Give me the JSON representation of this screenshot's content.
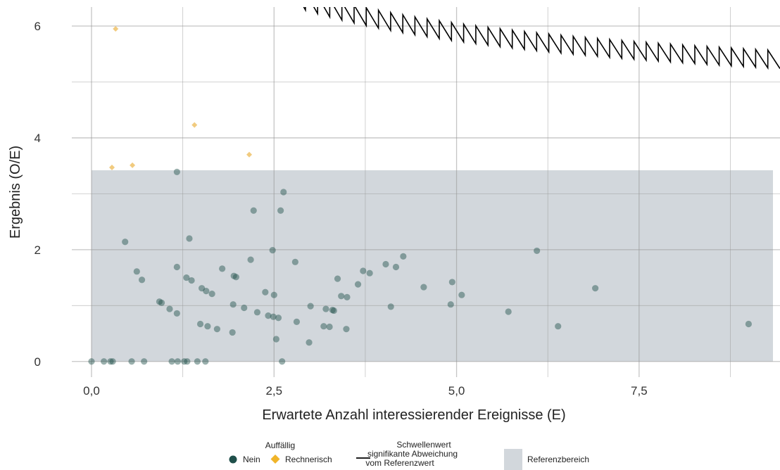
{
  "chart_data": {
    "type": "scatter",
    "xlabel": "Erwartete Anzahl interessierender Ereignisse (E)",
    "ylabel": "Ergebnis (O/E)",
    "xlim": [
      -0.27,
      9.43
    ],
    "ylim": [
      -0.28,
      6.34
    ],
    "x_ticks": [
      0,
      2.5,
      5,
      7.5
    ],
    "x_tick_labels": [
      "0,0",
      "2,5",
      "5,0",
      "7,5"
    ],
    "y_ticks": [
      0,
      2,
      4,
      6
    ],
    "y_tick_labels": [
      "0",
      "2",
      "4",
      "6"
    ],
    "grid": true,
    "reference_band": {
      "name": "Referenzbereich",
      "x": [
        0,
        9.43
      ],
      "y": [
        0,
        3.42
      ],
      "color": "#d2d7dc"
    },
    "series": [
      {
        "name": "Nein",
        "marker": "circle",
        "color": "#1f4f4a",
        "points": [
          [
            0,
            0
          ],
          [
            0.17,
            0
          ],
          [
            0.26,
            0
          ],
          [
            0.29,
            0
          ],
          [
            0.55,
            0
          ],
          [
            0.72,
            0
          ],
          [
            1.1,
            0
          ],
          [
            1.18,
            0
          ],
          [
            1.27,
            0
          ],
          [
            1.31,
            0
          ],
          [
            1.45,
            0
          ],
          [
            1.56,
            0
          ],
          [
            2.61,
            0
          ],
          [
            0.46,
            2.14
          ],
          [
            0.62,
            1.61
          ],
          [
            0.69,
            1.46
          ],
          [
            0.93,
            1.07
          ],
          [
            0.96,
            1.05
          ],
          [
            1.07,
            0.94
          ],
          [
            1.17,
            0.86
          ],
          [
            1.17,
            1.69
          ],
          [
            1.17,
            3.39
          ],
          [
            1.3,
            1.5
          ],
          [
            1.34,
            2.2
          ],
          [
            1.37,
            1.45
          ],
          [
            1.51,
            1.31
          ],
          [
            1.57,
            1.26
          ],
          [
            1.65,
            1.21
          ],
          [
            1.72,
            0.58
          ],
          [
            1.79,
            1.66
          ],
          [
            1.49,
            0.67
          ],
          [
            1.59,
            0.63
          ],
          [
            1.93,
            0.52
          ],
          [
            1.94,
            1.02
          ],
          [
            1.95,
            1.53
          ],
          [
            1.98,
            1.51
          ],
          [
            2.09,
            0.96
          ],
          [
            2.18,
            1.82
          ],
          [
            2.22,
            2.7
          ],
          [
            2.27,
            0.88
          ],
          [
            2.38,
            1.24
          ],
          [
            2.42,
            0.82
          ],
          [
            2.48,
            1.99
          ],
          [
            2.49,
            0.8
          ],
          [
            2.5,
            1.19
          ],
          [
            2.53,
            0.4
          ],
          [
            2.56,
            0.78
          ],
          [
            2.59,
            2.7
          ],
          [
            2.63,
            3.03
          ],
          [
            2.79,
            1.78
          ],
          [
            2.81,
            0.71
          ],
          [
            2.98,
            0.34
          ],
          [
            3.0,
            0.99
          ],
          [
            3.18,
            0.63
          ],
          [
            3.21,
            0.94
          ],
          [
            3.26,
            0.62
          ],
          [
            3.3,
            0.92
          ],
          [
            3.32,
            0.91
          ],
          [
            3.37,
            1.48
          ],
          [
            3.42,
            1.17
          ],
          [
            3.49,
            0.58
          ],
          [
            3.5,
            1.15
          ],
          [
            3.65,
            1.38
          ],
          [
            3.72,
            1.62
          ],
          [
            3.81,
            1.58
          ],
          [
            4.03,
            1.74
          ],
          [
            4.1,
            0.98
          ],
          [
            4.17,
            1.69
          ],
          [
            4.27,
            1.88
          ],
          [
            4.55,
            1.33
          ],
          [
            4.92,
            1.02
          ],
          [
            4.94,
            1.42
          ],
          [
            5.07,
            1.19
          ],
          [
            5.71,
            0.89
          ],
          [
            6.1,
            1.98
          ],
          [
            6.39,
            0.63
          ],
          [
            6.9,
            1.31
          ],
          [
            9.0,
            0.67
          ]
        ]
      },
      {
        "name": "Rechnerisch",
        "marker": "diamond",
        "color": "#f0c878",
        "points": [
          [
            0.33,
            5.95
          ],
          [
            0.28,
            3.47
          ],
          [
            0.56,
            3.51
          ],
          [
            1.41,
            4.23
          ],
          [
            2.16,
            3.7
          ]
        ]
      }
    ],
    "threshold_line": {
      "name": "Schwellenwert signifikante Abweichung vom Referenzwert",
      "color": "#000000",
      "x_start": 1.43,
      "x_end": 9.43,
      "steps_per_unit": 6,
      "formula": "y ≈ 3.97 + 4.05 / sqrt(E)"
    },
    "legend": {
      "position": "bottom",
      "group_title": "Auffällig",
      "entries": [
        {
          "key": "nein",
          "label": "Nein"
        },
        {
          "key": "rechnerisch",
          "label": "Rechnerisch"
        },
        {
          "key": "line",
          "label_lines": [
            "Schwellenwert",
            "signifikante Abweichung",
            "vom Referenzwert"
          ]
        },
        {
          "key": "band",
          "label": "Referenzbereich"
        }
      ]
    }
  }
}
